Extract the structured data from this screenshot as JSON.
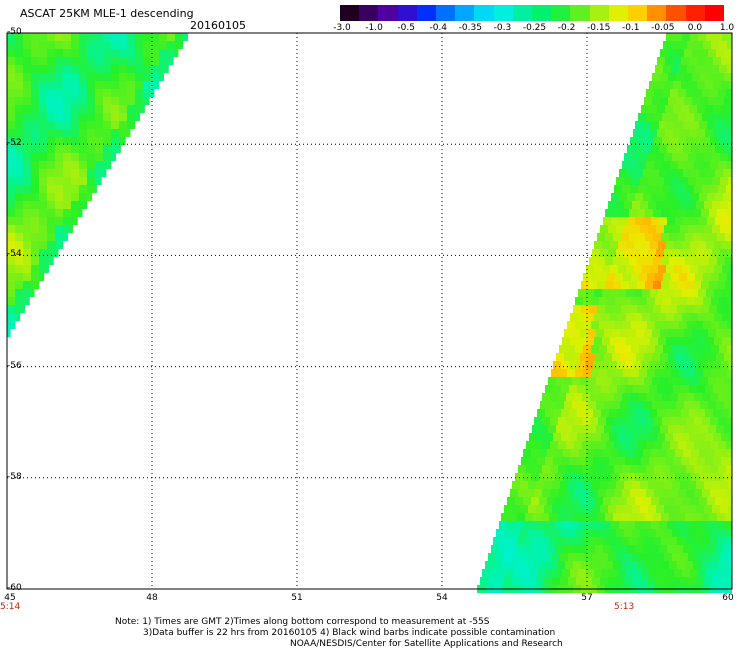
{
  "header": {
    "title": "ASCAT 25KM MLE-1 descending",
    "date": "20160105"
  },
  "colorbar": {
    "labels": [
      "-3.0",
      "-1.0",
      "-0.5",
      "-0.4",
      "-0.35",
      "-0.3",
      "-0.25",
      "-0.2",
      "-0.15",
      "-0.1",
      "-0.05",
      "0.0",
      "1.0"
    ],
    "colors": [
      "#200020",
      "#3a0060",
      "#5000a0",
      "#3010d0",
      "#0030ff",
      "#0070ff",
      "#00a8ff",
      "#00d8f8",
      "#00f0e0",
      "#00f0a0",
      "#00f070",
      "#20f040",
      "#60f020",
      "#a8f010",
      "#e0f000",
      "#ffd000",
      "#ff9000",
      "#ff5000",
      "#ff2000",
      "#ff0000"
    ]
  },
  "map": {
    "lat_labels": [
      "-50",
      "-52",
      "-54",
      "-56",
      "-58",
      "-60"
    ],
    "lon_labels": [
      "45",
      "48",
      "51",
      "54",
      "57",
      "60"
    ],
    "time_labels": [
      "5:14",
      "5:13"
    ],
    "lat_range": [
      -60,
      -50
    ],
    "lon_range": [
      45,
      60
    ]
  },
  "notes": {
    "line1": "Note: 1) Times are GMT 2)Times along bottom correspond to measurement at -55S",
    "line2": "3)Data buffer is 22 hrs from 20160105 4) Black wind barbs indicate possible contamination",
    "line3": "NOAA/NESDIS/Center for Satellite Applications and Research"
  }
}
